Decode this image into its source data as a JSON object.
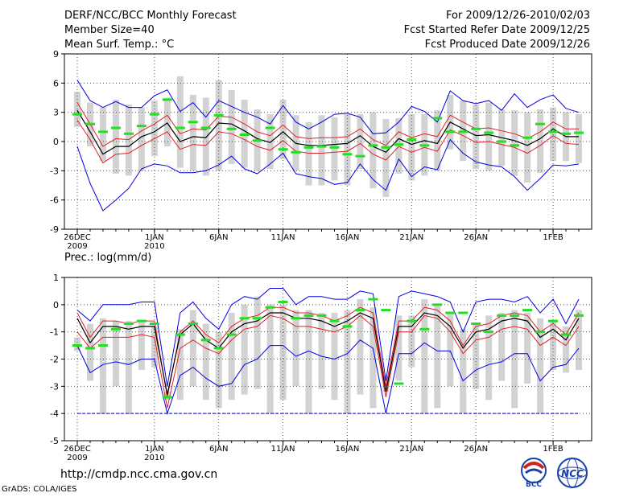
{
  "header": {
    "title": "DERF/NCC/BCC Monthly Forecast",
    "member_size": "Member Size=40",
    "variable": "Mean Surf. Temp.: °C",
    "period": "For 2009/12/26-2010/02/03",
    "fcst_started": "Fcst Started Refer Date 2009/12/25",
    "fcst_produced": "Fcst Produced Date 2009/12/26"
  },
  "footer": {
    "url": "http://cmdp.ncc.cma.gov.cn",
    "credit": "GrADS: COLA/IGES",
    "logo_left_text": "BCC",
    "logo_right_text": "NCC"
  },
  "colors": {
    "box": "#d2d2d2",
    "median": "#000000",
    "inner": "#e0202a",
    "outer": "#0000e0",
    "obs": "#20e020",
    "grid": "#555555",
    "floor": "#0000c0"
  },
  "chart_data": [
    {
      "type": "line",
      "name": "temperature",
      "title": "Mean Surf. Temp.: °C",
      "ylim": [
        -9,
        9
      ],
      "yticks": [
        -9,
        -6,
        -3,
        0,
        3,
        6,
        9
      ],
      "x_tick_labels": [
        {
          "day": 0,
          "line1": "26DEC",
          "line2": "2009"
        },
        {
          "day": 6,
          "line1": "1JAN",
          "line2": "2010"
        },
        {
          "day": 11,
          "line1": "6JAN",
          "line2": ""
        },
        {
          "day": 16,
          "line1": "11JAN",
          "line2": ""
        },
        {
          "day": 21,
          "line1": "16JAN",
          "line2": ""
        },
        {
          "day": 26,
          "line1": "21JAN",
          "line2": ""
        },
        {
          "day": 31,
          "line1": "26JAN",
          "line2": ""
        },
        {
          "day": 37,
          "line1": "1FEB",
          "line2": ""
        }
      ],
      "days": 39,
      "median": [
        3.2,
        1,
        -1.3,
        -0.5,
        -0.5,
        0.5,
        1,
        1.9,
        0,
        0.5,
        0.4,
        1.9,
        1.8,
        1.1,
        0.3,
        -0.1,
        1,
        -0.2,
        -0.4,
        -0.4,
        -0.3,
        -0.2,
        0.6,
        -0.5,
        -1.1,
        0.3,
        -0.3,
        0.1,
        -0.2,
        2,
        1.3,
        0.6,
        0.7,
        0.4,
        0.1,
        -0.4,
        0.3,
        1.3,
        0.5,
        0.5
      ],
      "upper_inner": [
        4,
        1.8,
        -0.5,
        0.3,
        0.2,
        1.1,
        1.8,
        2.7,
        0.8,
        1.3,
        1.2,
        2.6,
        2.5,
        1.8,
        1,
        0.6,
        1.7,
        0.5,
        0.3,
        0.4,
        0.4,
        0.5,
        1.3,
        0.2,
        -0.4,
        1,
        0.4,
        0.8,
        0.5,
        2.7,
        2,
        1.3,
        1.4,
        1.1,
        0.8,
        0.3,
        1,
        2,
        1.3,
        1.3
      ],
      "lower_inner": [
        2.2,
        0.2,
        -2.2,
        -1.3,
        -1.2,
        -0.4,
        0.3,
        1,
        -0.8,
        -0.3,
        -0.4,
        1,
        0.8,
        0.2,
        -0.5,
        -0.9,
        0.1,
        -1,
        -1.2,
        -1.2,
        -1.1,
        -1,
        -0.2,
        -1.3,
        -1.9,
        -0.5,
        -1.1,
        -0.6,
        -1,
        1.2,
        0.6,
        -0.1,
        0,
        -0.3,
        -0.6,
        -1.2,
        -0.4,
        0.6,
        -0.2,
        -0.3
      ],
      "upper_outer": [
        6.3,
        4.2,
        3.5,
        4.1,
        3.5,
        3.5,
        4.7,
        5.3,
        3.1,
        4,
        2.5,
        4.2,
        3.6,
        3,
        2.5,
        1.8,
        3.7,
        2,
        1.3,
        2,
        2.8,
        2.9,
        2.5,
        0.8,
        0.9,
        2,
        3.6,
        3.1,
        2,
        5.2,
        4.2,
        3.9,
        4.2,
        3.2,
        4.9,
        3.5,
        4.3,
        4.8,
        3.4,
        3
      ],
      "lower_outer": [
        -0.5,
        -4.3,
        -7.1,
        -6,
        -4.8,
        -2.8,
        -2.3,
        -2.5,
        -3.2,
        -3.2,
        -3,
        -2.4,
        -1.5,
        -2.8,
        -3.3,
        -2.3,
        -1.2,
        -3.3,
        -3.6,
        -3.8,
        -4.4,
        -4.2,
        -2.3,
        -3.9,
        -5,
        -1.8,
        -3.6,
        -2.6,
        -2.9,
        0.2,
        -1.2,
        -2.1,
        -2.4,
        -2.6,
        -3.6,
        -5,
        -3.8,
        -2.4,
        -2.5,
        -2.3
      ],
      "box_high": [
        5.1,
        4,
        3.5,
        4.3,
        3.8,
        3.5,
        4.2,
        4.5,
        6.7,
        4.8,
        4.5,
        6.3,
        5.3,
        4.3,
        3.3,
        2.8,
        4.3,
        2.7,
        2,
        2.7,
        2.5,
        2.8,
        2.8,
        3,
        2.3,
        2.4,
        2.8,
        2.8,
        3.2,
        4.8,
        4.2,
        3.8,
        4,
        3.3,
        3.2,
        3,
        3.3,
        3.5,
        3,
        2.8
      ],
      "box_low": [
        1.5,
        -0.5,
        -2,
        -3.3,
        -3.5,
        -3,
        -1.5,
        -0.5,
        -2.7,
        -3,
        -3.5,
        -3,
        -2.3,
        -2.7,
        -3,
        -2.8,
        -1.8,
        -3,
        -4.5,
        -4.5,
        -4,
        -4.5,
        -2.8,
        -4.8,
        -5.7,
        -3.3,
        -4,
        -3.5,
        -3,
        -0.8,
        -2,
        -2.8,
        -3,
        -2.5,
        -3.5,
        -4.2,
        -3.2,
        -2,
        -2,
        -2.2
      ],
      "observed": [
        2.8,
        1.8,
        1,
        1.4,
        0.8,
        1.6,
        2.8,
        4.3,
        1.4,
        2,
        1.4,
        2.7,
        1.3,
        0.7,
        0.1,
        1.4,
        -0.8,
        -1.1,
        -0.6,
        -0.5,
        -0.6,
        -1.3,
        -1.5,
        -0.4,
        -0.6,
        -0.3,
        0.2,
        -0.4,
        2.4,
        1,
        1,
        1.3,
        0.9,
        0,
        -0.4,
        0.4,
        1.8,
        1,
        0.8,
        0.9
      ]
    },
    {
      "type": "line",
      "name": "precipitation",
      "title": "Prec.: log(mm/d)",
      "ylim": [
        -5,
        1
      ],
      "yticks": [
        -5,
        -4,
        -3,
        -2,
        -1,
        0,
        1
      ],
      "x_tick_labels": [
        {
          "day": 0,
          "line1": "26DEC",
          "line2": "2009"
        },
        {
          "day": 6,
          "line1": "1JAN",
          "line2": "2010"
        },
        {
          "day": 11,
          "line1": "6JAN",
          "line2": ""
        },
        {
          "day": 16,
          "line1": "11JAN",
          "line2": ""
        },
        {
          "day": 21,
          "line1": "16JAN",
          "line2": ""
        },
        {
          "day": 26,
          "line1": "21JAN",
          "line2": ""
        },
        {
          "day": 31,
          "line1": "26JAN",
          "line2": ""
        },
        {
          "day": 37,
          "line1": "1FEB",
          "line2": ""
        }
      ],
      "days": 39,
      "floor_value": -4,
      "median": [
        -0.5,
        -1.4,
        -0.8,
        -0.8,
        -0.9,
        -0.8,
        -0.8,
        -3.3,
        -1.1,
        -0.7,
        -1.3,
        -1.6,
        -1,
        -0.7,
        -0.6,
        -0.3,
        -0.3,
        -0.5,
        -0.5,
        -0.6,
        -0.8,
        -0.6,
        -0.3,
        -0.5,
        -3.2,
        -0.8,
        -0.8,
        -0.3,
        -0.4,
        -0.8,
        -1.6,
        -1,
        -0.9,
        -0.6,
        -0.5,
        -0.6,
        -1.2,
        -0.9,
        -1.3,
        -0.5
      ],
      "upper_inner": [
        -0.3,
        -1.2,
        -0.6,
        -0.6,
        -0.7,
        -0.6,
        -0.6,
        -3.4,
        -1,
        -0.6,
        -1.1,
        -1.4,
        -0.8,
        -0.5,
        -0.4,
        -0.1,
        -0.1,
        -0.3,
        -0.3,
        -0.4,
        -0.6,
        -0.4,
        -0.1,
        -0.3,
        -3,
        -0.6,
        -0.6,
        -0.1,
        -0.2,
        -0.6,
        -1.5,
        -0.8,
        -0.7,
        -0.4,
        -0.3,
        -0.4,
        -1,
        -0.7,
        -1.1,
        -0.3
      ],
      "lower_inner": [
        -1,
        -1.6,
        -1.2,
        -1.2,
        -1.2,
        -1.1,
        -1.2,
        -3.8,
        -1.6,
        -1.3,
        -1.6,
        -1.8,
        -1.3,
        -0.9,
        -0.8,
        -0.4,
        -0.5,
        -0.8,
        -0.8,
        -0.9,
        -1,
        -0.8,
        -0.4,
        -0.8,
        -3.4,
        -1,
        -1,
        -0.4,
        -0.5,
        -1,
        -1.8,
        -1.3,
        -1.2,
        -0.9,
        -0.8,
        -0.9,
        -1.5,
        -1.2,
        -1.5,
        -0.8
      ],
      "upper_outer": [
        -0.2,
        -0.6,
        0,
        0,
        0,
        0.1,
        0.1,
        -3,
        -0.3,
        0.1,
        -0.5,
        -0.9,
        0,
        0.3,
        0.2,
        0.6,
        0.6,
        0,
        0.3,
        0.3,
        0.2,
        0.2,
        0.5,
        0.4,
        -2.8,
        0.3,
        0.5,
        0.4,
        0.3,
        0.1,
        -1,
        0.1,
        0.2,
        0.2,
        0.1,
        0.3,
        -0.3,
        0.2,
        -0.7,
        0.2
      ],
      "lower_outer": [
        -1.5,
        -2.5,
        -2.2,
        -2.1,
        -2.2,
        -2,
        -2,
        -4,
        -2.6,
        -2.3,
        -2.7,
        -3,
        -2.9,
        -2.2,
        -2,
        -1.5,
        -1.5,
        -1.9,
        -1.7,
        -1.9,
        -2,
        -1.8,
        -1.3,
        -1.6,
        -4,
        -1.8,
        -1.8,
        -1.4,
        -1.7,
        -1.7,
        -2.8,
        -2.4,
        -2.2,
        -2.1,
        -1.8,
        -1.8,
        -2.8,
        -2.3,
        -2.2,
        -1.6
      ],
      "box_high": [
        -1.2,
        -0.7,
        -0.5,
        -0.6,
        -0.6,
        -0.6,
        -0.8,
        -3.2,
        -0.9,
        -0.2,
        -0.7,
        -1,
        -0.3,
        0,
        0.3,
        0,
        0,
        -0.2,
        -0.2,
        -0.3,
        -0.3,
        -0.2,
        0.2,
        -0.1,
        -2.6,
        -0.4,
        -0.4,
        0.2,
        0,
        -0.3,
        -0.9,
        -0.7,
        -0.4,
        -0.3,
        -0.2,
        -0.3,
        -0.5,
        -0.6,
        -0.8,
        -0.2
      ],
      "box_low": [
        -1.7,
        -2.8,
        -4,
        -3,
        -4,
        -2.4,
        -2.3,
        -3.5,
        -3.5,
        -3,
        -3.5,
        -3.8,
        -3.5,
        -3.3,
        -3.1,
        -4,
        -3.5,
        -3,
        -4,
        -3.1,
        -3.5,
        -4,
        -3.3,
        -3.8,
        -3.2,
        -2.8,
        -2.3,
        -4,
        -3.8,
        -3,
        -4,
        -3.1,
        -3.5,
        -2.8,
        -3.8,
        -2.9,
        -4,
        -2.4,
        -2.5,
        -2.4
      ],
      "observed": [
        -1.5,
        -1.6,
        -1.5,
        -0.9,
        -0.7,
        -0.6,
        -0.7,
        -3.4,
        -1.1,
        -0.7,
        -1.3,
        -1.6,
        -1.1,
        -0.5,
        -0.5,
        -0.1,
        0.1,
        -0.5,
        -0.4,
        -0.4,
        -0.6,
        -0.8,
        -0.2,
        0.2,
        -0.2,
        -2.9,
        -0.6,
        -0.9,
        0,
        -0.3,
        -0.3,
        -0.7,
        -1,
        -0.4,
        -0.4,
        -0.2,
        -1,
        -0.6,
        -1.1,
        -0.4
      ]
    }
  ]
}
